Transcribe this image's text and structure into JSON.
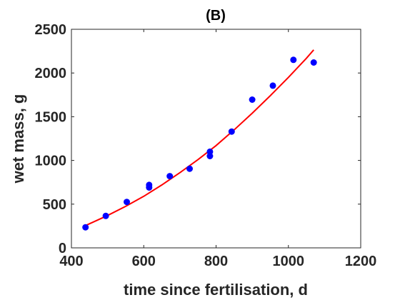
{
  "chart_data": {
    "type": "scatter",
    "title": "(B)",
    "xlabel": "time since fertilisation, d",
    "ylabel": "wet mass, g",
    "xlim": [
      400,
      1200
    ],
    "ylim": [
      0,
      2500
    ],
    "xticks": [
      400,
      600,
      800,
      1000,
      1200
    ],
    "yticks": [
      0,
      500,
      1000,
      1500,
      2000,
      2500
    ],
    "xtick_labels": [
      "400",
      "600",
      "800",
      "1000",
      "1200"
    ],
    "ytick_labels": [
      "0",
      "500",
      "1000",
      "1500",
      "2000",
      "2500"
    ],
    "grid": false,
    "legend": "none",
    "series": [
      {
        "kind": "scatter",
        "color": "#0000ff",
        "marker": "circle",
        "points": [
          [
            439,
            235
          ],
          [
            495,
            365
          ],
          [
            553,
            525
          ],
          [
            615,
            720
          ],
          [
            615,
            690
          ],
          [
            672,
            820
          ],
          [
            727,
            905
          ],
          [
            783,
            1100
          ],
          [
            783,
            1050
          ],
          [
            843,
            1330
          ],
          [
            900,
            1695
          ],
          [
            957,
            1855
          ],
          [
            1014,
            2150
          ],
          [
            1070,
            2120
          ]
        ]
      },
      {
        "kind": "line",
        "color": "#ff0000",
        "points": [
          [
            439,
            255
          ],
          [
            500,
            370
          ],
          [
            550,
            475
          ],
          [
            600,
            590
          ],
          [
            650,
            720
          ],
          [
            700,
            860
          ],
          [
            750,
            1010
          ],
          [
            800,
            1170
          ],
          [
            850,
            1350
          ],
          [
            900,
            1540
          ],
          [
            950,
            1740
          ],
          [
            1000,
            1950
          ],
          [
            1050,
            2170
          ],
          [
            1070,
            2265
          ]
        ]
      }
    ]
  }
}
